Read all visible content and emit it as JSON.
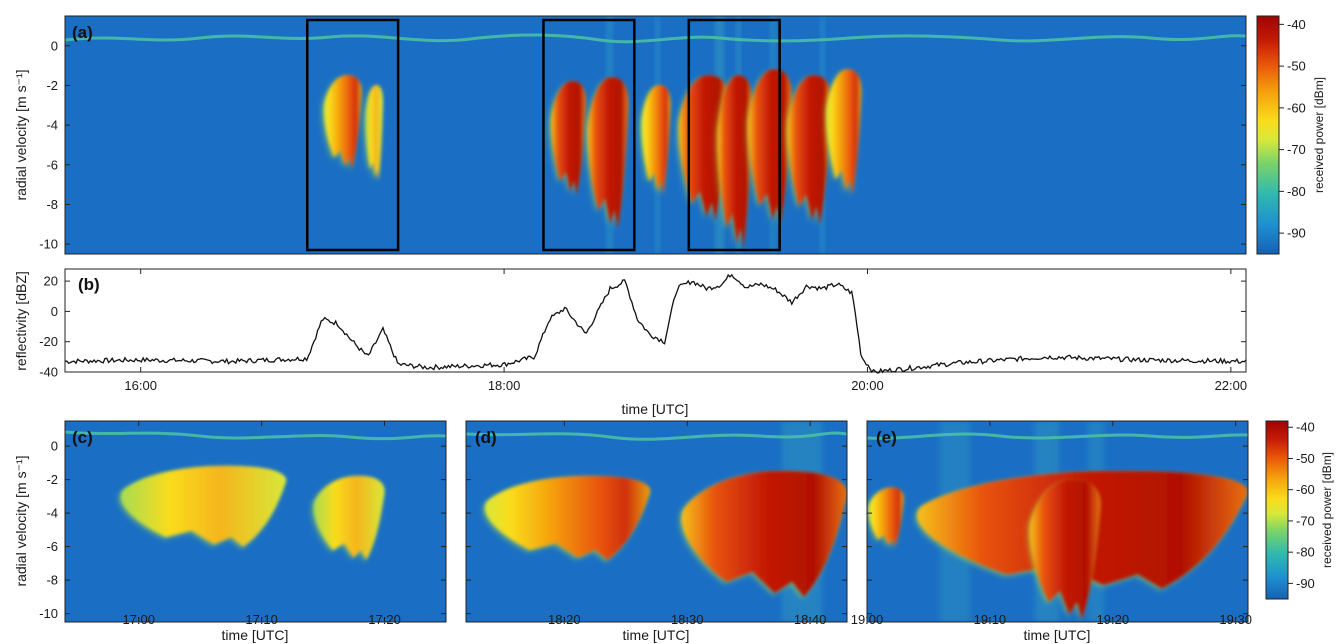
{
  "colors": {
    "background": "#1a6fc4",
    "colormap": [
      "#1560b5",
      "#1e8fd0",
      "#2fb8b0",
      "#79d36a",
      "#d8e83a",
      "#fadc1c",
      "#f5a10c",
      "#e8530a",
      "#c41a06",
      "#9e0403"
    ]
  },
  "colorbar": {
    "label": "received power [dBm]",
    "ticks": [
      "-40",
      "-50",
      "-60",
      "-70",
      "-80",
      "-90"
    ],
    "range": [
      -95,
      -38
    ]
  },
  "chart_data": [
    {
      "type": "heatmap",
      "panel": "(a)",
      "ylabel": "radial velocity [m s⁻¹]",
      "yticks": [
        "0",
        "-2",
        "-4",
        "-6",
        "-8",
        "-10"
      ],
      "ylim": [
        -10.5,
        1.5
      ],
      "xlim": [
        "15:35",
        "22:05"
      ],
      "boxes": [
        {
          "start": "16:55",
          "end": "17:25"
        },
        {
          "start": "18:13",
          "end": "18:43"
        },
        {
          "start": "19:01",
          "end": "19:31"
        }
      ],
      "echoes": [
        {
          "t_start": "17:00",
          "t_end": "17:13",
          "v_top": -1.5,
          "v_bottom": -6.2,
          "peak_dbm": -62
        },
        {
          "t_start": "17:14",
          "t_end": "17:20",
          "v_top": -2.0,
          "v_bottom": -6.8,
          "peak_dbm": -68
        },
        {
          "t_start": "18:15",
          "t_end": "18:27",
          "v_top": -1.8,
          "v_bottom": -7.5,
          "peak_dbm": -50
        },
        {
          "t_start": "18:27",
          "t_end": "18:41",
          "v_top": -1.6,
          "v_bottom": -9.2,
          "peak_dbm": -45
        },
        {
          "t_start": "18:45",
          "t_end": "18:55",
          "v_top": -2.0,
          "v_bottom": -7.5,
          "peak_dbm": -52
        },
        {
          "t_start": "18:57",
          "t_end": "19:14",
          "v_top": -1.5,
          "v_bottom": -8.8,
          "peak_dbm": -45
        },
        {
          "t_start": "19:10",
          "t_end": "19:22",
          "v_top": -1.5,
          "v_bottom": -10.2,
          "peak_dbm": -42
        },
        {
          "t_start": "19:20",
          "t_end": "19:35",
          "v_top": -1.2,
          "v_bottom": -9.0,
          "peak_dbm": -45
        },
        {
          "t_start": "19:33",
          "t_end": "19:48",
          "v_top": -1.5,
          "v_bottom": -9.0,
          "peak_dbm": -48
        },
        {
          "t_start": "19:46",
          "t_end": "19:58",
          "v_top": -1.2,
          "v_bottom": -7.5,
          "peak_dbm": -55
        }
      ]
    },
    {
      "type": "line",
      "panel": "(b)",
      "ylabel": "reflectivity [dBZ]",
      "xlabel": "time [UTC]",
      "yticks": [
        "20",
        "0",
        "-20",
        "-40"
      ],
      "ylim": [
        -40,
        28
      ],
      "xlim": [
        "15:35",
        "22:05"
      ],
      "xticks": [
        "16:00",
        "18:00",
        "20:00",
        "22:00"
      ],
      "x": [
        "15:35",
        "16:00",
        "16:30",
        "16:55",
        "17:00",
        "17:05",
        "17:10",
        "17:15",
        "17:20",
        "17:25",
        "17:35",
        "18:00",
        "18:10",
        "18:15",
        "18:20",
        "18:27",
        "18:35",
        "18:40",
        "18:44",
        "18:48",
        "18:53",
        "18:57",
        "19:02",
        "19:07",
        "19:12",
        "19:15",
        "19:20",
        "19:25",
        "19:30",
        "19:35",
        "19:40",
        "19:45",
        "19:50",
        "19:55",
        "19:58",
        "20:02",
        "20:30",
        "21:00",
        "21:30",
        "22:05"
      ],
      "y": [
        -33,
        -32,
        -33,
        -31,
        -5,
        -8,
        -20,
        -30,
        -12,
        -35,
        -37,
        -35,
        -30,
        -5,
        2,
        -15,
        15,
        20,
        -5,
        -15,
        -20,
        15,
        20,
        15,
        18,
        25,
        16,
        18,
        14,
        6,
        17,
        15,
        18,
        12,
        -30,
        -40,
        -34,
        -30,
        -32,
        -33
      ]
    },
    {
      "type": "heatmap",
      "panel": "(c)",
      "ylabel": "radial velocity [m s⁻¹]",
      "xlabel": "time [UTC]",
      "yticks": [
        "0",
        "-2",
        "-4",
        "-6",
        "-8",
        "-10"
      ],
      "ylim": [
        -10.5,
        1.5
      ],
      "xlim": [
        "16:54",
        "17:25"
      ],
      "xticks": [
        "17:00",
        "17:10",
        "17:20"
      ],
      "echoes": [
        {
          "t_start": "16:58",
          "t_end": "17:12",
          "v_top": -1.2,
          "v_bottom": -6.0,
          "peak_dbm": -68
        },
        {
          "t_start": "17:14",
          "t_end": "17:20",
          "v_top": -1.8,
          "v_bottom": -6.8,
          "peak_dbm": -70
        }
      ]
    },
    {
      "type": "heatmap",
      "panel": "(d)",
      "xlabel": "time [UTC]",
      "ylim": [
        -10.5,
        1.5
      ],
      "xlim": [
        "18:12",
        "18:43"
      ],
      "xticks": [
        "18:20",
        "18:30",
        "18:40"
      ],
      "echoes": [
        {
          "t_start": "18:13",
          "t_end": "18:27",
          "v_top": -1.8,
          "v_bottom": -6.8,
          "peak_dbm": -55
        },
        {
          "t_start": "18:29",
          "t_end": "18:43",
          "v_top": -1.5,
          "v_bottom": -9.0,
          "peak_dbm": -45
        }
      ]
    },
    {
      "type": "heatmap",
      "panel": "(e)",
      "xlabel": "time [UTC]",
      "ylim": [
        -10.5,
        1.5
      ],
      "xlim": [
        "19:00",
        "19:31"
      ],
      "xticks": [
        "19:00",
        "19:10",
        "19:20",
        "19:30"
      ],
      "echoes": [
        {
          "t_start": "19:00",
          "t_end": "19:03",
          "v_top": -2.5,
          "v_bottom": -6.0,
          "peak_dbm": -55
        },
        {
          "t_start": "19:03",
          "t_end": "19:31",
          "v_top": -1.5,
          "v_bottom": -8.5,
          "peak_dbm": -48
        },
        {
          "t_start": "19:13",
          "t_end": "19:19",
          "v_top": -2.0,
          "v_bottom": -10.3,
          "peak_dbm": -40
        }
      ]
    }
  ]
}
